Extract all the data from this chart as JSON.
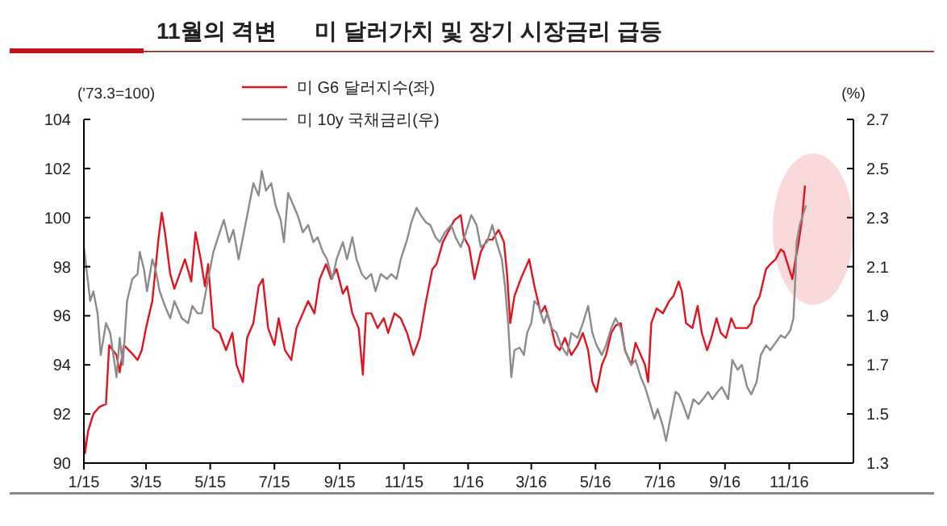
{
  "chart_data": {
    "type": "line",
    "title": "11월의 격변",
    "subtitle": "미 달러가치 및 장기 시장금리 급등",
    "ylabel": "('73.3=100)",
    "y2label": "(%)",
    "legend": "top",
    "xlim": [
      "2015-01-01",
      "2017-01-01"
    ],
    "xticks": [
      {
        "value": "2015-01-01",
        "label": "1/15"
      },
      {
        "value": "2015-03-01",
        "label": "3/15"
      },
      {
        "value": "2015-05-01",
        "label": "5/15"
      },
      {
        "value": "2015-07-01",
        "label": "7/15"
      },
      {
        "value": "2015-09-01",
        "label": "9/15"
      },
      {
        "value": "2015-11-01",
        "label": "11/15"
      },
      {
        "value": "2016-01-01",
        "label": "1/16"
      },
      {
        "value": "2016-03-01",
        "label": "3/16"
      },
      {
        "value": "2016-05-01",
        "label": "5/16"
      },
      {
        "value": "2016-07-01",
        "label": "7/16"
      },
      {
        "value": "2016-09-01",
        "label": "9/16"
      },
      {
        "value": "2016-11-01",
        "label": "11/16"
      }
    ],
    "ylim": [
      90,
      104
    ],
    "yticks": [
      90,
      92,
      94,
      96,
      98,
      100,
      102,
      104
    ],
    "y2lim": [
      1.3,
      2.7
    ],
    "y2ticks": [
      1.3,
      1.5,
      1.7,
      1.9,
      2.1,
      2.3,
      2.5,
      2.7
    ],
    "series": [
      {
        "name": "미 G6 달러지수(좌)",
        "color": "#e0141e",
        "x": [
          "2015-01-01",
          "2015-01-02",
          "2015-01-05",
          "2015-01-10",
          "2015-01-16",
          "2015-01-22",
          "2015-01-25",
          "2015-02-01",
          "2015-02-04",
          "2015-02-08",
          "2015-02-15",
          "2015-02-21",
          "2015-02-25",
          "2015-03-01",
          "2015-03-07",
          "2015-03-13",
          "2015-03-16",
          "2015-03-19",
          "2015-03-24",
          "2015-03-28",
          "2015-04-02",
          "2015-04-07",
          "2015-04-13",
          "2015-04-17",
          "2015-04-22",
          "2015-04-26",
          "2015-04-29",
          "2015-05-04",
          "2015-05-10",
          "2015-05-16",
          "2015-05-22",
          "2015-05-26",
          "2015-06-01",
          "2015-06-05",
          "2015-06-11",
          "2015-06-16",
          "2015-06-20",
          "2015-06-25",
          "2015-07-01",
          "2015-07-05",
          "2015-07-11",
          "2015-07-17",
          "2015-07-22",
          "2015-07-28",
          "2015-08-02",
          "2015-08-08",
          "2015-08-13",
          "2015-08-19",
          "2015-08-24",
          "2015-08-29",
          "2015-09-04",
          "2015-09-08",
          "2015-09-13",
          "2015-09-19",
          "2015-09-23",
          "2015-09-26",
          "2015-10-01",
          "2015-10-07",
          "2015-10-13",
          "2015-10-17",
          "2015-10-23",
          "2015-10-29",
          "2015-11-04",
          "2015-11-10",
          "2015-11-16",
          "2015-11-22",
          "2015-11-28",
          "2015-12-02",
          "2015-12-08",
          "2015-12-14",
          "2015-12-19",
          "2015-12-25",
          "2015-12-28",
          "2016-01-02",
          "2016-01-07",
          "2016-01-13",
          "2016-01-19",
          "2016-01-24",
          "2016-01-30",
          "2016-02-04",
          "2016-02-07",
          "2016-02-10",
          "2016-02-14",
          "2016-02-20",
          "2016-02-24",
          "2016-02-28",
          "2016-03-04",
          "2016-03-10",
          "2016-03-14",
          "2016-03-19",
          "2016-03-24",
          "2016-03-28",
          "2016-04-02",
          "2016-04-08",
          "2016-04-14",
          "2016-04-19",
          "2016-04-24",
          "2016-04-28",
          "2016-05-02",
          "2016-05-07",
          "2016-05-11",
          "2016-05-16",
          "2016-05-20",
          "2016-05-25",
          "2016-05-29",
          "2016-06-04",
          "2016-06-08",
          "2016-06-13",
          "2016-06-17",
          "2016-06-20",
          "2016-06-23",
          "2016-06-28",
          "2016-07-04",
          "2016-07-10",
          "2016-07-14",
          "2016-07-19",
          "2016-07-22",
          "2016-07-26",
          "2016-08-01",
          "2016-08-06",
          "2016-08-10",
          "2016-08-15",
          "2016-08-19",
          "2016-08-24",
          "2016-08-28",
          "2016-09-02",
          "2016-09-07",
          "2016-09-11",
          "2016-09-17",
          "2016-09-22",
          "2016-09-26",
          "2016-09-29",
          "2016-10-04",
          "2016-10-10",
          "2016-10-14",
          "2016-10-19",
          "2016-10-24",
          "2016-10-27",
          "2016-11-01",
          "2016-11-04",
          "2016-11-07",
          "2016-11-10",
          "2016-11-13",
          "2016-11-16"
        ],
        "values": [
          91.2,
          90.4,
          91.3,
          92.0,
          92.3,
          92.4,
          94.8,
          94.4,
          93.7,
          94.8,
          94.5,
          94.2,
          94.6,
          95.5,
          96.6,
          99.2,
          100.2,
          99.4,
          97.7,
          97.1,
          97.7,
          98.3,
          97.4,
          99.4,
          98.3,
          97.2,
          98.1,
          95.5,
          95.3,
          94.6,
          95.3,
          94.0,
          93.3,
          95.1,
          95.7,
          97.2,
          97.5,
          95.5,
          94.8,
          95.9,
          94.6,
          94.2,
          95.5,
          96.1,
          96.6,
          96.1,
          97.5,
          98.1,
          97.5,
          97.9,
          96.9,
          97.2,
          96.1,
          95.5,
          93.6,
          96.1,
          96.1,
          95.5,
          95.9,
          95.3,
          96.1,
          95.9,
          95.3,
          94.4,
          95.1,
          96.6,
          97.9,
          98.1,
          99.0,
          99.5,
          99.9,
          100.1,
          99.2,
          98.8,
          97.5,
          98.6,
          99.1,
          99.1,
          99.5,
          99.0,
          97.7,
          95.7,
          96.8,
          97.5,
          97.9,
          98.3,
          97.2,
          96.1,
          96.4,
          95.7,
          94.8,
          94.6,
          95.1,
          94.4,
          94.8,
          95.3,
          94.6,
          93.3,
          92.9,
          94.0,
          94.4,
          95.3,
          95.6,
          95.7,
          94.6,
          94.0,
          94.9,
          94.4,
          94.0,
          93.3,
          95.7,
          96.3,
          96.1,
          96.6,
          96.8,
          97.4,
          97.0,
          95.7,
          95.5,
          96.4,
          95.3,
          94.6,
          95.1,
          95.9,
          95.3,
          95.1,
          95.9,
          95.5,
          95.5,
          95.5,
          95.7,
          96.4,
          96.8,
          97.9,
          98.1,
          98.3,
          98.7,
          98.6,
          97.9,
          97.5,
          98.3,
          99.0,
          99.9,
          101.3
        ]
      },
      {
        "name": "미 10y 국채금리(우)",
        "color": "#8c8c8c",
        "axis": "y2",
        "x": [
          "2015-01-01",
          "2015-01-04",
          "2015-01-07",
          "2015-01-10",
          "2015-01-14",
          "2015-01-17",
          "2015-01-22",
          "2015-01-26",
          "2015-02-01",
          "2015-02-04",
          "2015-02-07",
          "2015-02-11",
          "2015-02-16",
          "2015-02-21",
          "2015-02-23",
          "2015-02-27",
          "2015-03-02",
          "2015-03-07",
          "2015-03-10",
          "2015-03-14",
          "2015-03-19",
          "2015-03-24",
          "2015-03-28",
          "2015-04-04",
          "2015-04-10",
          "2015-04-14",
          "2015-04-19",
          "2015-04-23",
          "2015-04-29",
          "2015-05-04",
          "2015-05-10",
          "2015-05-14",
          "2015-05-19",
          "2015-05-23",
          "2015-05-28",
          "2015-06-02",
          "2015-06-07",
          "2015-06-11",
          "2015-06-16",
          "2015-06-19",
          "2015-06-23",
          "2015-06-28",
          "2015-07-02",
          "2015-07-07",
          "2015-07-10",
          "2015-07-14",
          "2015-07-19",
          "2015-07-23",
          "2015-07-28",
          "2015-08-02",
          "2015-08-07",
          "2015-08-11",
          "2015-08-16",
          "2015-08-20",
          "2015-08-25",
          "2015-08-29",
          "2015-09-04",
          "2015-09-08",
          "2015-09-13",
          "2015-09-17",
          "2015-09-22",
          "2015-09-26",
          "2015-10-01",
          "2015-10-05",
          "2015-10-10",
          "2015-10-16",
          "2015-10-20",
          "2015-10-25",
          "2015-10-29",
          "2015-11-04",
          "2015-11-08",
          "2015-11-13",
          "2015-11-17",
          "2015-11-22",
          "2015-11-26",
          "2015-12-01",
          "2015-12-05",
          "2015-12-10",
          "2015-12-16",
          "2015-12-20",
          "2015-12-25",
          "2015-12-30",
          "2016-01-04",
          "2016-01-09",
          "2016-01-13",
          "2016-01-19",
          "2016-01-24",
          "2016-01-28",
          "2016-02-02",
          "2016-02-05",
          "2016-02-08",
          "2016-02-11",
          "2016-02-14",
          "2016-02-19",
          "2016-02-23",
          "2016-02-26",
          "2016-03-01",
          "2016-03-04",
          "2016-03-08",
          "2016-03-13",
          "2016-03-16",
          "2016-03-20",
          "2016-03-25",
          "2016-03-29",
          "2016-04-04",
          "2016-04-08",
          "2016-04-14",
          "2016-04-19",
          "2016-04-24",
          "2016-04-28",
          "2016-05-02",
          "2016-05-07",
          "2016-05-11",
          "2016-05-16",
          "2016-05-20",
          "2016-05-25",
          "2016-05-29",
          "2016-06-04",
          "2016-06-08",
          "2016-06-13",
          "2016-06-17",
          "2016-06-22",
          "2016-06-26",
          "2016-06-29",
          "2016-07-04",
          "2016-07-07",
          "2016-07-11",
          "2016-07-16",
          "2016-07-19",
          "2016-07-23",
          "2016-07-28",
          "2016-08-02",
          "2016-08-07",
          "2016-08-11",
          "2016-08-16",
          "2016-08-20",
          "2016-08-25",
          "2016-08-29",
          "2016-09-04",
          "2016-09-08",
          "2016-09-13",
          "2016-09-17",
          "2016-09-22",
          "2016-09-26",
          "2016-10-01",
          "2016-10-05",
          "2016-10-10",
          "2016-10-14",
          "2016-10-19",
          "2016-10-24",
          "2016-10-28",
          "2016-11-02",
          "2016-11-05",
          "2016-11-07",
          "2016-11-08",
          "2016-11-11",
          "2016-11-14",
          "2016-11-17"
        ],
        "values": [
          2.18,
          2.07,
          1.96,
          2.0,
          1.91,
          1.74,
          1.87,
          1.83,
          1.65,
          1.81,
          1.7,
          1.96,
          2.05,
          2.07,
          2.16,
          2.09,
          2.0,
          2.13,
          2.09,
          2.0,
          1.94,
          1.89,
          1.96,
          1.89,
          1.87,
          1.94,
          1.91,
          1.91,
          2.05,
          2.16,
          2.24,
          2.29,
          2.2,
          2.25,
          2.13,
          2.24,
          2.35,
          2.44,
          2.39,
          2.49,
          2.41,
          2.44,
          2.35,
          2.29,
          2.2,
          2.4,
          2.35,
          2.31,
          2.24,
          2.27,
          2.2,
          2.22,
          2.16,
          2.13,
          2.05,
          2.13,
          2.2,
          2.13,
          2.22,
          2.13,
          2.07,
          2.05,
          2.07,
          2.0,
          2.07,
          2.05,
          2.07,
          2.05,
          2.13,
          2.21,
          2.28,
          2.34,
          2.31,
          2.28,
          2.27,
          2.22,
          2.2,
          2.24,
          2.27,
          2.22,
          2.18,
          2.24,
          2.31,
          2.27,
          2.18,
          2.2,
          2.27,
          2.2,
          2.13,
          2.02,
          1.87,
          1.65,
          1.76,
          1.77,
          1.74,
          1.83,
          1.87,
          1.96,
          1.94,
          1.87,
          1.91,
          1.85,
          1.83,
          1.78,
          1.74,
          1.83,
          1.81,
          1.87,
          1.94,
          1.83,
          1.78,
          1.74,
          1.78,
          1.85,
          1.89,
          1.85,
          1.76,
          1.7,
          1.72,
          1.65,
          1.61,
          1.54,
          1.48,
          1.52,
          1.45,
          1.39,
          1.48,
          1.59,
          1.58,
          1.54,
          1.48,
          1.56,
          1.54,
          1.56,
          1.59,
          1.56,
          1.59,
          1.61,
          1.56,
          1.72,
          1.68,
          1.7,
          1.61,
          1.58,
          1.63,
          1.74,
          1.78,
          1.76,
          1.79,
          1.82,
          1.81,
          1.84,
          1.89,
          2.07,
          2.2,
          2.27,
          2.31,
          2.35
        ]
      }
    ]
  }
}
